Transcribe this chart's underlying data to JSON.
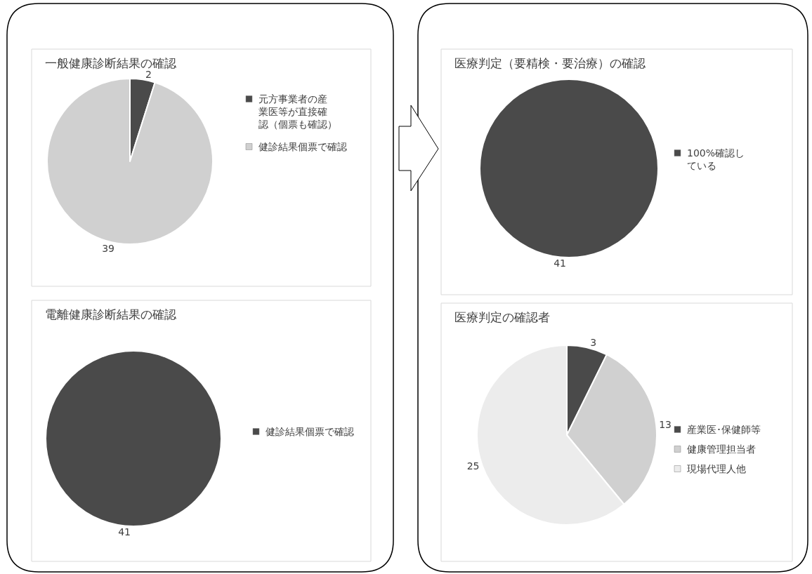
{
  "chart_data": [
    {
      "type": "pie",
      "title": "一般健康診断結果の確認",
      "categories": [
        "元方事業者の産業医等が直接確認（個票も確認）",
        "健診結果個票で確認"
      ],
      "values": [
        2,
        39
      ],
      "colors": [
        "#4a4a4a",
        "#d0d0d0"
      ],
      "data_labels": true,
      "legend": "right"
    },
    {
      "type": "pie",
      "title": "電離健康診断結果の確認",
      "categories": [
        "健診結果個票で確認"
      ],
      "values": [
        41
      ],
      "colors": [
        "#4a4a4a"
      ],
      "data_labels": true,
      "legend": "right"
    },
    {
      "type": "pie",
      "title": "医療判定（要精検・要治療）の確認",
      "categories": [
        "100%確認している"
      ],
      "values": [
        41
      ],
      "colors": [
        "#4a4a4a"
      ],
      "data_labels": true,
      "legend": "right"
    },
    {
      "type": "pie",
      "title": "医療判定の確認者",
      "categories": [
        "産業医･保健師等",
        "健康管理担当者",
        "現場代理人他"
      ],
      "values": [
        3,
        13,
        25
      ],
      "colors": [
        "#4a4a4a",
        "#d0d0d0",
        "#ececec"
      ],
      "data_labels": true,
      "legend": "right"
    }
  ]
}
